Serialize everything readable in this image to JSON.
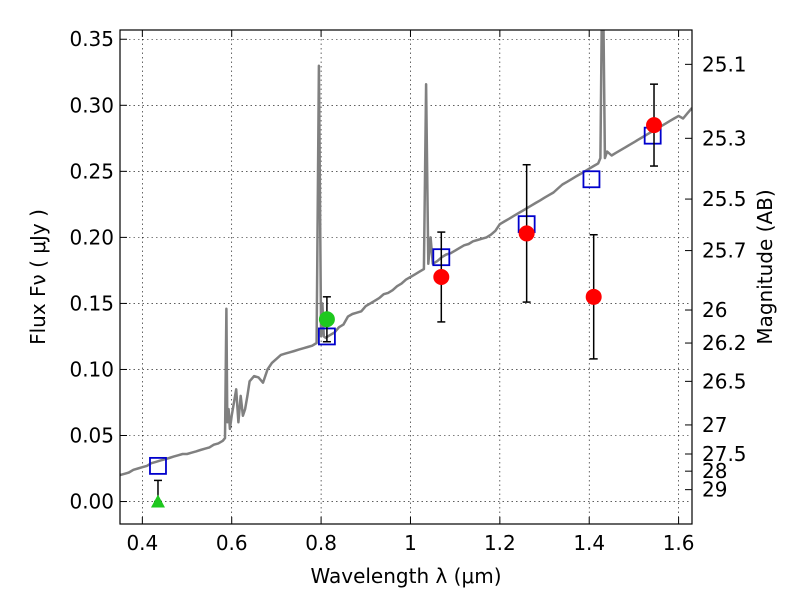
{
  "chart_data": {
    "type": "line",
    "xlabel": "Wavelength  λ (μm)",
    "ylabel": "Flux  Fν  ( μJy )",
    "ylabel_right": "Magnitude (AB)",
    "xlim": [
      0.35,
      1.63
    ],
    "ylim": [
      -0.017,
      0.357
    ],
    "grid": true,
    "x_ticks": [
      0.4,
      0.6,
      0.8,
      1.0,
      1.2,
      1.4,
      1.6
    ],
    "x_tick_labels": [
      "0.4",
      "0.6",
      "0.8",
      "1",
      "1.2",
      "1.4",
      "1.6"
    ],
    "y_ticks": [
      0.0,
      0.05,
      0.1,
      0.15,
      0.2,
      0.25,
      0.3,
      0.35
    ],
    "y_tick_labels": [
      "0.00",
      "0.05",
      "0.10",
      "0.15",
      "0.20",
      "0.25",
      "0.30",
      "0.35"
    ],
    "right_ticks": [
      {
        "label": "25.1",
        "flux": 0.331
      },
      {
        "label": "25.3",
        "flux": 0.275
      },
      {
        "label": "25.5",
        "flux": 0.229
      },
      {
        "label": "25.7",
        "flux": 0.19
      },
      {
        "label": "26",
        "flux": 0.145
      },
      {
        "label": "26.2",
        "flux": 0.12
      },
      {
        "label": "26.5",
        "flux": 0.091
      },
      {
        "label": "27",
        "flux": 0.058
      },
      {
        "label": "27.5",
        "flux": 0.036
      },
      {
        "label": "28",
        "flux": 0.023
      },
      {
        "label": "29",
        "flux": 0.009
      }
    ],
    "series": [
      {
        "color": "#808080",
        "style": "line",
        "x": [
          0.35,
          0.36,
          0.37,
          0.38,
          0.39,
          0.4,
          0.41,
          0.42,
          0.43,
          0.44,
          0.45,
          0.46,
          0.47,
          0.48,
          0.49,
          0.5,
          0.51,
          0.52,
          0.53,
          0.54,
          0.55,
          0.56,
          0.57,
          0.58,
          0.585,
          0.588,
          0.59,
          0.593,
          0.596,
          0.6,
          0.61,
          0.615,
          0.62,
          0.625,
          0.63,
          0.635,
          0.64,
          0.65,
          0.66,
          0.67,
          0.68,
          0.69,
          0.7,
          0.71,
          0.72,
          0.73,
          0.74,
          0.75,
          0.76,
          0.77,
          0.78,
          0.79,
          0.795,
          0.8,
          0.803,
          0.806,
          0.81,
          0.82,
          0.83,
          0.84,
          0.85,
          0.86,
          0.87,
          0.88,
          0.89,
          0.9,
          0.91,
          0.92,
          0.93,
          0.94,
          0.95,
          0.96,
          0.97,
          0.98,
          0.99,
          1.0,
          1.01,
          1.02,
          1.03,
          1.035,
          1.04,
          1.045,
          1.05,
          1.06,
          1.07,
          1.08,
          1.09,
          1.1,
          1.11,
          1.12,
          1.13,
          1.14,
          1.15,
          1.16,
          1.17,
          1.18,
          1.19,
          1.2,
          1.21,
          1.22,
          1.23,
          1.24,
          1.25,
          1.26,
          1.27,
          1.28,
          1.29,
          1.3,
          1.31,
          1.32,
          1.33,
          1.34,
          1.35,
          1.36,
          1.37,
          1.38,
          1.39,
          1.4,
          1.41,
          1.42,
          1.425,
          1.428,
          1.432,
          1.435,
          1.44,
          1.45,
          1.46,
          1.47,
          1.48,
          1.49,
          1.5,
          1.51,
          1.52,
          1.53,
          1.54,
          1.55,
          1.56,
          1.57,
          1.58,
          1.59,
          1.6,
          1.61,
          1.62,
          1.63
        ],
        "y": [
          0.02,
          0.021,
          0.022,
          0.024,
          0.025,
          0.026,
          0.027,
          0.029,
          0.03,
          0.031,
          0.032,
          0.033,
          0.034,
          0.035,
          0.036,
          0.036,
          0.037,
          0.038,
          0.039,
          0.04,
          0.041,
          0.043,
          0.044,
          0.046,
          0.048,
          0.146,
          0.06,
          0.07,
          0.055,
          0.065,
          0.085,
          0.06,
          0.08,
          0.065,
          0.07,
          0.08,
          0.091,
          0.095,
          0.094,
          0.09,
          0.1,
          0.105,
          0.108,
          0.111,
          0.112,
          0.113,
          0.114,
          0.115,
          0.116,
          0.117,
          0.118,
          0.12,
          0.33,
          0.125,
          0.15,
          0.125,
          0.124,
          0.126,
          0.128,
          0.132,
          0.134,
          0.14,
          0.142,
          0.143,
          0.144,
          0.148,
          0.15,
          0.152,
          0.154,
          0.157,
          0.158,
          0.16,
          0.163,
          0.165,
          0.168,
          0.17,
          0.172,
          0.174,
          0.176,
          0.316,
          0.18,
          0.2,
          0.18,
          0.182,
          0.185,
          0.187,
          0.188,
          0.19,
          0.192,
          0.194,
          0.195,
          0.197,
          0.198,
          0.199,
          0.2,
          0.202,
          0.205,
          0.21,
          0.212,
          0.214,
          0.216,
          0.218,
          0.22,
          0.222,
          0.224,
          0.226,
          0.228,
          0.23,
          0.232,
          0.234,
          0.237,
          0.24,
          0.242,
          0.244,
          0.246,
          0.248,
          0.25,
          0.252,
          0.254,
          0.256,
          0.26,
          0.36,
          0.36,
          0.26,
          0.265,
          0.262,
          0.264,
          0.266,
          0.268,
          0.27,
          0.272,
          0.274,
          0.276,
          0.278,
          0.28,
          0.282,
          0.284,
          0.286,
          0.288,
          0.29,
          0.292,
          0.29,
          0.294,
          0.298
        ]
      },
      {
        "color": "#0000cc",
        "style": "open-square",
        "x": [
          0.435,
          0.813,
          1.069,
          1.26,
          1.405,
          1.542
        ],
        "y": [
          0.027,
          0.125,
          0.185,
          0.21,
          0.244,
          0.277
        ]
      },
      {
        "color": "#ff0000",
        "style": "filled-circle",
        "x": [
          1.069,
          1.26,
          1.41,
          1.545
        ],
        "y": [
          0.17,
          0.203,
          0.155,
          0.285
        ],
        "yerr": [
          0.034,
          0.052,
          0.047,
          0.031
        ]
      },
      {
        "color": "#1ec81e",
        "style": "filled-circle",
        "x": [
          0.813
        ],
        "y": [
          0.138
        ],
        "yerr": [
          0.017
        ]
      },
      {
        "color": "#1ec81e",
        "style": "filled-triangle",
        "x": [
          0.435
        ],
        "y": [
          0.0
        ],
        "yerr_upper": [
          0.016
        ],
        "yerr_lower": [
          0.0
        ]
      }
    ]
  }
}
